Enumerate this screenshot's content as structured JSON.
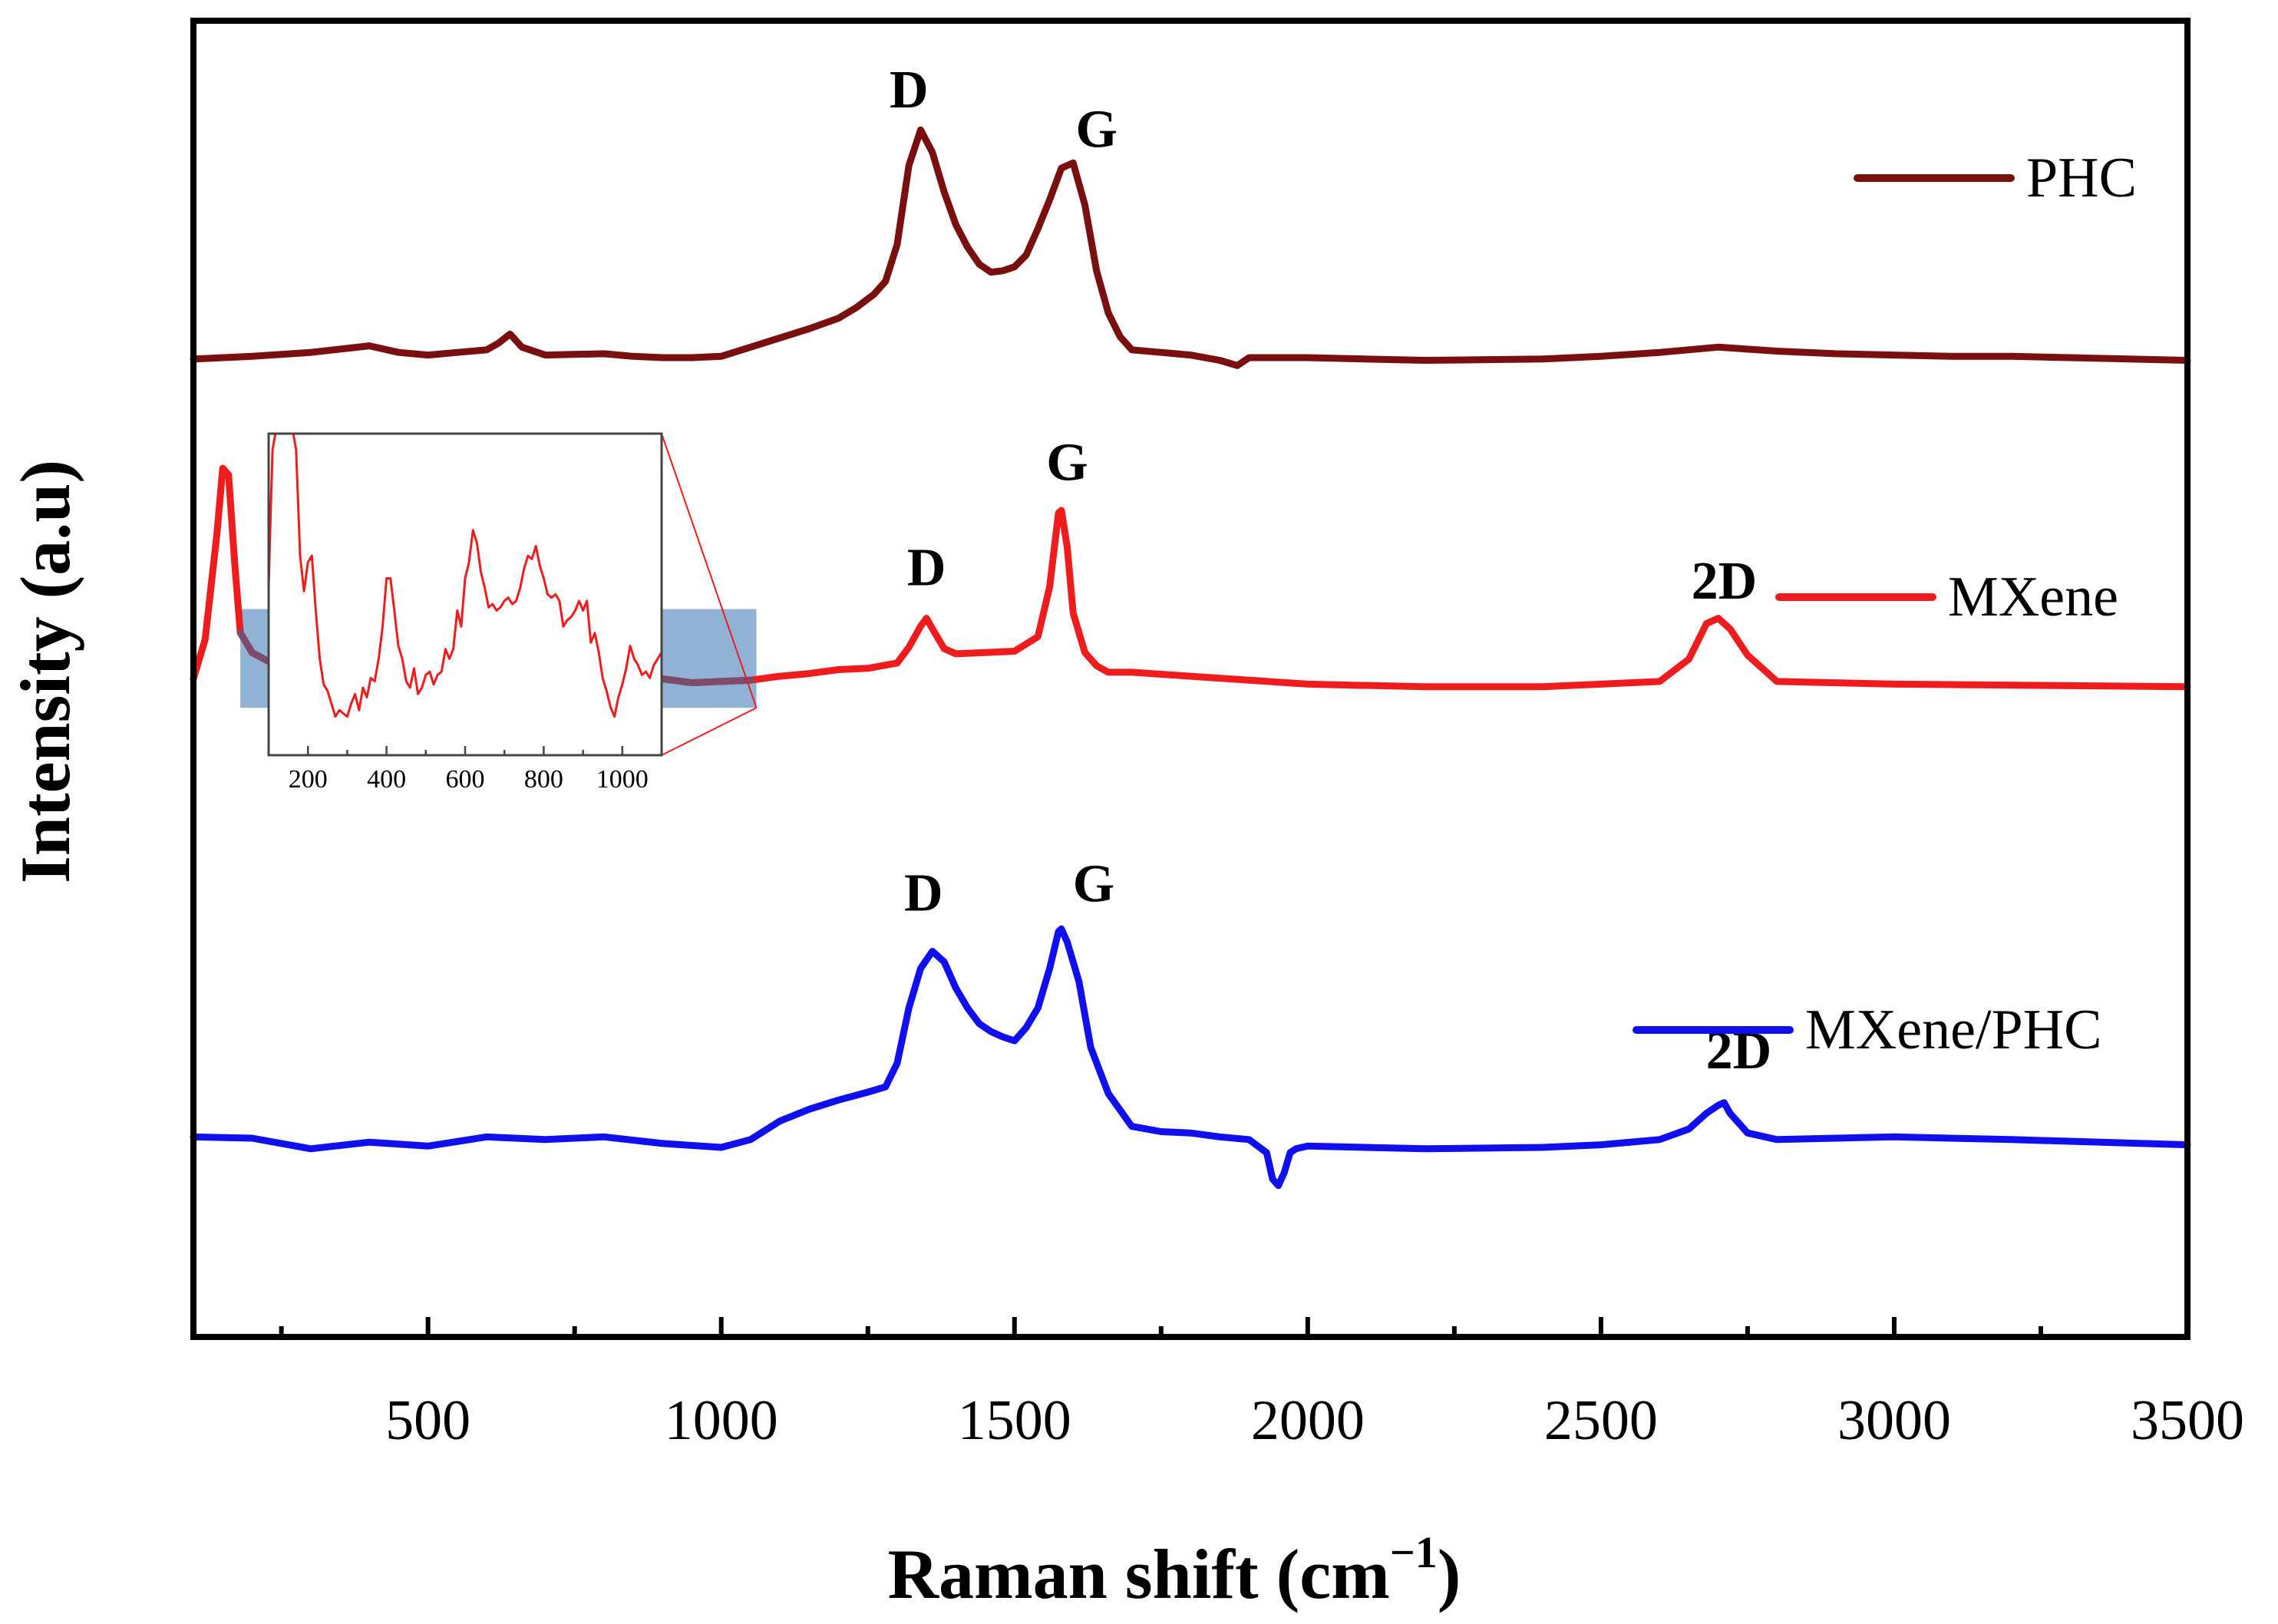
{
  "chart_data": {
    "type": "line",
    "title": "",
    "xlabel": "Raman shift (cm",
    "xlabel_sup": "−1",
    "xlabel_close": ")",
    "ylabel": "Intensity (a.u)",
    "xlim": [
      100,
      3500
    ],
    "ylim": [
      0,
      100
    ],
    "xticks": [
      500,
      1000,
      1500,
      2000,
      2500,
      3000,
      3500
    ],
    "xtick_labels": [
      "500",
      "1000",
      "1500",
      "2000",
      "2500",
      "3000",
      "3500"
    ],
    "grid": false,
    "legend_position": "right, beside each trace",
    "series": [
      {
        "name": "PHC",
        "color": "#7a0f0f",
        "x": [
          100,
          200,
          300,
          400,
          450,
          500,
          550,
          600,
          620,
          640,
          660,
          700,
          800,
          850,
          900,
          950,
          1000,
          1050,
          1100,
          1150,
          1200,
          1230,
          1260,
          1280,
          1300,
          1320,
          1340,
          1360,
          1380,
          1400,
          1420,
          1440,
          1460,
          1480,
          1500,
          1520,
          1540,
          1560,
          1580,
          1600,
          1620,
          1640,
          1660,
          1680,
          1700,
          1750,
          1800,
          1850,
          1880,
          1900,
          2000,
          2200,
          2400,
          2500,
          2600,
          2700,
          2800,
          2900,
          3000,
          3100,
          3200,
          3300,
          3400,
          3500
        ],
        "y": [
          74.3,
          74.5,
          74.8,
          75.3,
          74.8,
          74.6,
          74.8,
          75.0,
          75.5,
          76.2,
          75.2,
          74.6,
          74.7,
          74.5,
          74.4,
          74.4,
          74.5,
          75.2,
          75.9,
          76.6,
          77.4,
          78.2,
          79.2,
          80.2,
          83.0,
          89.0,
          91.7,
          90.0,
          87.0,
          84.5,
          82.8,
          81.5,
          80.9,
          81.0,
          81.3,
          82.2,
          84.2,
          86.4,
          88.8,
          89.2,
          86.0,
          81.0,
          77.8,
          76.0,
          75.0,
          74.8,
          74.6,
          74.2,
          73.8,
          74.4,
          74.4,
          74.2,
          74.3,
          74.5,
          74.8,
          75.2,
          74.9,
          74.7,
          74.6,
          74.5,
          74.5,
          74.4,
          74.3,
          74.2
        ]
      },
      {
        "name": "MXene",
        "color": "#ee1c1c",
        "x": [
          100,
          120,
          140,
          150,
          160,
          170,
          180,
          200,
          250,
          300,
          350,
          400,
          450,
          500,
          550,
          600,
          650,
          700,
          750,
          800,
          850,
          900,
          950,
          1000,
          1050,
          1100,
          1150,
          1200,
          1250,
          1300,
          1320,
          1340,
          1350,
          1360,
          1380,
          1400,
          1450,
          1500,
          1540,
          1560,
          1575,
          1580,
          1590,
          1600,
          1620,
          1640,
          1660,
          1700,
          1800,
          2000,
          2200,
          2400,
          2500,
          2600,
          2650,
          2680,
          2700,
          2720,
          2750,
          2800,
          3000,
          3500
        ],
        "y": [
          50.0,
          53.0,
          61.0,
          66.0,
          65.5,
          59.0,
          53.5,
          52.0,
          50.8,
          49.3,
          50.2,
          51.3,
          50.3,
          49.8,
          50.6,
          51.0,
          50.7,
          51.5,
          50.8,
          51.1,
          50.3,
          50.0,
          49.7,
          49.8,
          49.9,
          50.2,
          50.4,
          50.7,
          50.8,
          51.2,
          52.4,
          54.0,
          54.6,
          53.8,
          52.3,
          51.9,
          52.0,
          52.1,
          53.2,
          57.0,
          62.6,
          62.8,
          60.0,
          55.0,
          52.0,
          51.0,
          50.5,
          50.5,
          50.2,
          49.6,
          49.4,
          49.4,
          49.6,
          49.8,
          51.5,
          54.2,
          54.6,
          53.8,
          51.8,
          49.8,
          49.6,
          49.4
        ]
      },
      {
        "name": "MXene/PHC",
        "color": "#1010ee",
        "x": [
          100,
          200,
          300,
          400,
          500,
          600,
          700,
          800,
          900,
          1000,
          1050,
          1100,
          1150,
          1200,
          1250,
          1280,
          1300,
          1320,
          1340,
          1360,
          1380,
          1400,
          1420,
          1440,
          1460,
          1480,
          1500,
          1520,
          1540,
          1560,
          1575,
          1580,
          1590,
          1610,
          1630,
          1660,
          1700,
          1750,
          1800,
          1850,
          1900,
          1930,
          1940,
          1950,
          1960,
          1970,
          1980,
          2000,
          2200,
          2400,
          2500,
          2600,
          2650,
          2680,
          2700,
          2710,
          2720,
          2750,
          2800,
          3000,
          3200,
          3500
        ],
        "y": [
          15.2,
          15.1,
          14.3,
          14.8,
          14.5,
          15.2,
          15.0,
          15.2,
          14.7,
          14.4,
          15.0,
          16.4,
          17.3,
          18.0,
          18.6,
          19.0,
          20.8,
          25.0,
          28.0,
          29.3,
          28.5,
          26.5,
          25.0,
          23.8,
          23.2,
          22.8,
          22.5,
          23.5,
          25.0,
          28.0,
          30.8,
          31.0,
          30.0,
          27.0,
          22.0,
          18.5,
          16.0,
          15.6,
          15.5,
          15.2,
          15.0,
          14.0,
          12.0,
          11.5,
          12.5,
          14.0,
          14.3,
          14.5,
          14.3,
          14.4,
          14.6,
          15.0,
          15.8,
          17.0,
          17.6,
          17.8,
          17.0,
          15.5,
          15.0,
          15.2,
          15.0,
          14.6
        ]
      }
    ],
    "annotations": [
      {
        "text": "D",
        "x": 1320,
        "y": 93.4
      },
      {
        "text": "G",
        "x": 1640,
        "y": 90.4
      },
      {
        "text": "D",
        "x": 1350,
        "y": 57.1
      },
      {
        "text": "G",
        "x": 1590,
        "y": 65.1
      },
      {
        "text": "2D",
        "x": 2710,
        "y": 56.1
      },
      {
        "text": "D",
        "x": 1345,
        "y": 32.4
      },
      {
        "text": "G",
        "x": 1635,
        "y": 33.1
      },
      {
        "text": "2D",
        "x": 2735,
        "y": 20.4
      }
    ],
    "highlight_box": {
      "x_range": [
        180,
        1060
      ],
      "y_range": [
        47.8,
        55.3
      ],
      "color": "#8fb2d5"
    },
    "inset": {
      "series_name": "MXene",
      "color": "#ee1c1c",
      "xlim": [
        100,
        1100
      ],
      "ylim": [
        0,
        100
      ],
      "xticks": [
        200,
        400,
        600,
        800,
        1000
      ],
      "xtick_labels": [
        "200",
        "400",
        "600",
        "800",
        "1000"
      ],
      "x": [
        100,
        105,
        110,
        120,
        130,
        140,
        150,
        160,
        170,
        180,
        190,
        200,
        210,
        220,
        230,
        240,
        250,
        260,
        270,
        280,
        290,
        300,
        310,
        320,
        330,
        340,
        350,
        360,
        370,
        380,
        390,
        400,
        410,
        420,
        430,
        440,
        450,
        460,
        470,
        480,
        490,
        500,
        510,
        520,
        530,
        540,
        550,
        560,
        570,
        580,
        590,
        600,
        610,
        620,
        630,
        640,
        650,
        660,
        670,
        680,
        690,
        700,
        710,
        720,
        730,
        740,
        750,
        760,
        770,
        780,
        790,
        800,
        810,
        820,
        830,
        840,
        850,
        860,
        870,
        880,
        890,
        900,
        910,
        920,
        930,
        940,
        950,
        960,
        970,
        980,
        990,
        1000,
        1010,
        1020,
        1030,
        1040,
        1050,
        1060,
        1070,
        1080,
        1090,
        1100
      ],
      "y": [
        52,
        75,
        95,
        102,
        102,
        102,
        102,
        102,
        95,
        62,
        51,
        60,
        62,
        45,
        30,
        22,
        20,
        16,
        12,
        14,
        13,
        12,
        16,
        19,
        14,
        21,
        18,
        24,
        23,
        30,
        40,
        55,
        55,
        45,
        34,
        30,
        23,
        21,
        27,
        19,
        21,
        25,
        26,
        22,
        25,
        26,
        33,
        30,
        33,
        45,
        40,
        55,
        60,
        70,
        66,
        57,
        52,
        46,
        47,
        45,
        46,
        48,
        49,
        47,
        48,
        52,
        58,
        62,
        61,
        65,
        59,
        55,
        50,
        49,
        50,
        48,
        40,
        42,
        43,
        45,
        48,
        45,
        48,
        35,
        38,
        32,
        24,
        20,
        15,
        12,
        18,
        22,
        27,
        34,
        30,
        28,
        25,
        26,
        24,
        28,
        30,
        32
      ]
    }
  }
}
